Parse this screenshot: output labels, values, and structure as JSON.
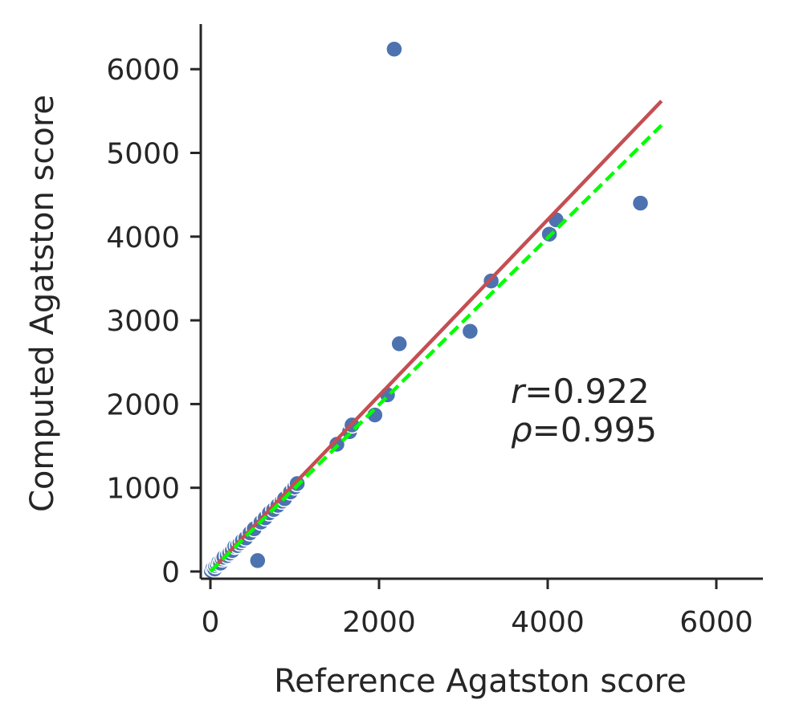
{
  "chart_data": {
    "type": "scatter",
    "xlabel": "Reference Agatston score",
    "ylabel": "Computed Agatston score",
    "xlim": [
      -100,
      6550
    ],
    "ylim": [
      -100,
      6550
    ],
    "x_ticks": [
      "0",
      "2000",
      "4000",
      "6000"
    ],
    "x_tick_values": [
      0,
      2000,
      4000,
      6000
    ],
    "y_ticks": [
      "0",
      "1000",
      "2000",
      "3000",
      "4000",
      "5000",
      "6000"
    ],
    "y_tick_values": [
      0,
      1000,
      2000,
      3000,
      4000,
      5000,
      6000
    ],
    "grid": false,
    "point_color": "#4c72b0",
    "points": [
      {
        "x": 10,
        "y": 10
      },
      {
        "x": 30,
        "y": 40
      },
      {
        "x": 50,
        "y": 30
      },
      {
        "x": 60,
        "y": 70
      },
      {
        "x": 80,
        "y": 90
      },
      {
        "x": 100,
        "y": 110
      },
      {
        "x": 120,
        "y": 100
      },
      {
        "x": 140,
        "y": 150
      },
      {
        "x": 160,
        "y": 170
      },
      {
        "x": 200,
        "y": 190
      },
      {
        "x": 230,
        "y": 220
      },
      {
        "x": 260,
        "y": 250
      },
      {
        "x": 290,
        "y": 300
      },
      {
        "x": 320,
        "y": 310
      },
      {
        "x": 350,
        "y": 340
      },
      {
        "x": 380,
        "y": 370
      },
      {
        "x": 420,
        "y": 400
      },
      {
        "x": 470,
        "y": 460
      },
      {
        "x": 520,
        "y": 510
      },
      {
        "x": 560,
        "y": 130
      },
      {
        "x": 600,
        "y": 590
      },
      {
        "x": 650,
        "y": 640
      },
      {
        "x": 700,
        "y": 700
      },
      {
        "x": 750,
        "y": 740
      },
      {
        "x": 800,
        "y": 790
      },
      {
        "x": 850,
        "y": 840
      },
      {
        "x": 880,
        "y": 870
      },
      {
        "x": 950,
        "y": 950
      },
      {
        "x": 1000,
        "y": 1010
      },
      {
        "x": 1030,
        "y": 1050
      },
      {
        "x": 1500,
        "y": 1520
      },
      {
        "x": 1650,
        "y": 1670
      },
      {
        "x": 1680,
        "y": 1750
      },
      {
        "x": 1950,
        "y": 1870
      },
      {
        "x": 2100,
        "y": 2110
      },
      {
        "x": 2180,
        "y": 6240
      },
      {
        "x": 2240,
        "y": 2720
      },
      {
        "x": 3080,
        "y": 2870
      },
      {
        "x": 3330,
        "y": 3470
      },
      {
        "x": 4020,
        "y": 4030
      },
      {
        "x": 4100,
        "y": 4200
      },
      {
        "x": 5100,
        "y": 4400
      }
    ],
    "fit_line": {
      "color": "#c44e52",
      "x": [
        0,
        5350
      ],
      "y": [
        0,
        5620
      ]
    },
    "identity_line": {
      "color": "#00ff00",
      "dashed": true,
      "x": [
        0,
        5350
      ],
      "y": [
        0,
        5330
      ]
    },
    "annotations": [
      {
        "symbol": "r",
        "value": "=0.922"
      },
      {
        "symbol": "ρ",
        "value": "=0.995"
      }
    ]
  }
}
